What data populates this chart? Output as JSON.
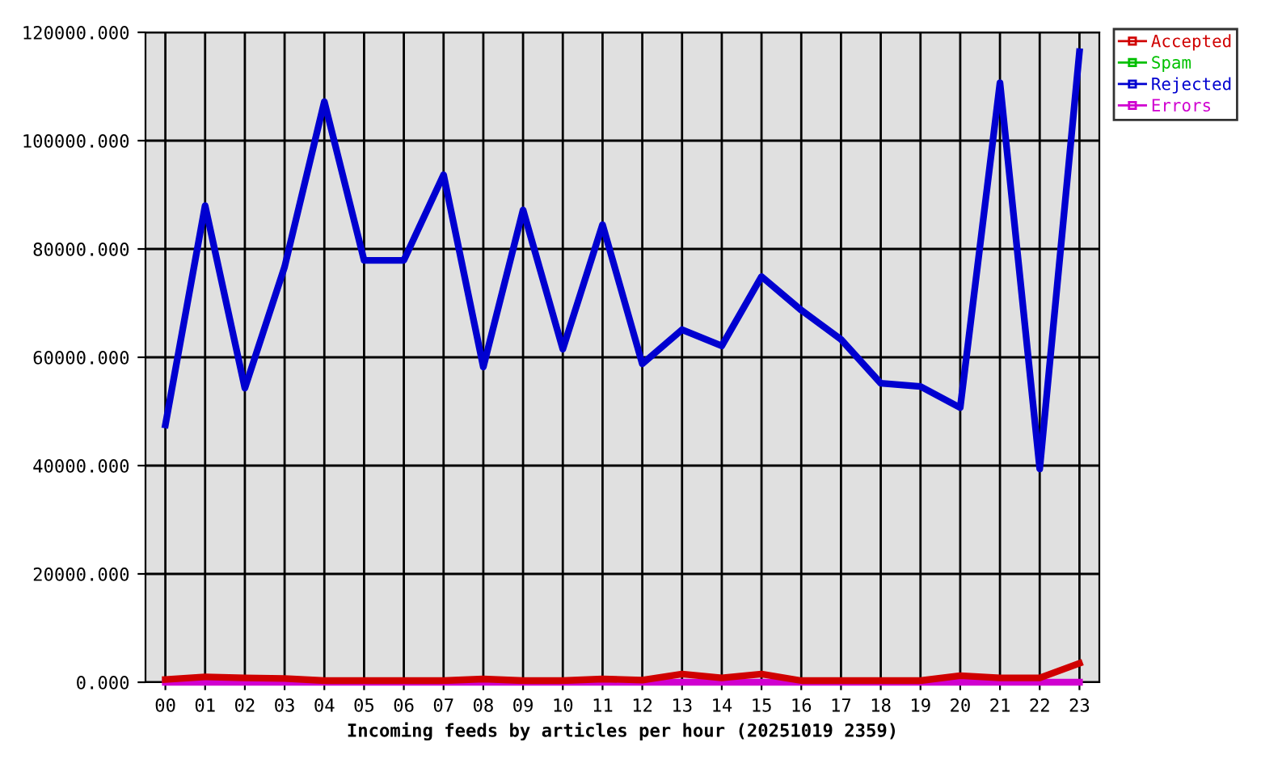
{
  "chart_data": {
    "type": "line",
    "xlabel": "Incoming feeds by articles per hour (20251019 2359)",
    "categories": [
      "00",
      "01",
      "02",
      "03",
      "04",
      "05",
      "06",
      "07",
      "08",
      "09",
      "10",
      "11",
      "12",
      "13",
      "14",
      "15",
      "16",
      "17",
      "18",
      "19",
      "20",
      "21",
      "22",
      "23"
    ],
    "series": [
      {
        "name": "Accepted",
        "color": "#d00000",
        "values": [
          500,
          1000,
          800,
          700,
          300,
          300,
          300,
          300,
          600,
          300,
          300,
          600,
          400,
          1500,
          800,
          1500,
          300,
          300,
          300,
          300,
          1200,
          800,
          800,
          3500
        ]
      },
      {
        "name": "Spam",
        "color": "#00c000",
        "values": [
          null,
          null,
          null,
          null,
          null,
          null,
          null,
          null,
          null,
          null,
          null,
          null,
          null,
          null,
          null,
          null,
          null,
          null,
          null,
          null,
          null,
          null,
          null,
          null
        ]
      },
      {
        "name": "Rejected",
        "color": "#0000d0",
        "values": [
          47500,
          88000,
          54300,
          76700,
          107200,
          77900,
          77900,
          93700,
          58200,
          87200,
          61500,
          84500,
          58800,
          65100,
          62100,
          74900,
          68700,
          63300,
          55200,
          54600,
          50700,
          110700,
          39400,
          116400
        ]
      },
      {
        "name": "Errors",
        "color": "#d000d0",
        "values": [
          0,
          0,
          0,
          0,
          0,
          0,
          0,
          0,
          0,
          0,
          0,
          0,
          0,
          0,
          0,
          0,
          0,
          0,
          0,
          0,
          0,
          0,
          0,
          0
        ]
      }
    ],
    "ylim": [
      0,
      120000
    ],
    "yticks": [
      {
        "value": 0,
        "label": "0.000"
      },
      {
        "value": 20000,
        "label": "20000.000"
      },
      {
        "value": 40000,
        "label": "40000.000"
      },
      {
        "value": 60000,
        "label": "60000.000"
      },
      {
        "value": 80000,
        "label": "80000.000"
      },
      {
        "value": 100000,
        "label": "100000.000"
      },
      {
        "value": 120000,
        "label": "120000.000"
      }
    ],
    "grid": true,
    "legend": "top right",
    "marker": "none",
    "line_style": "solid"
  }
}
